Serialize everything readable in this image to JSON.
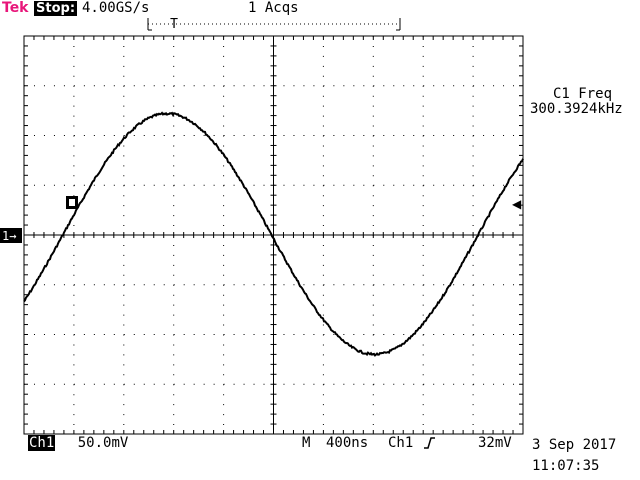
{
  "header": {
    "brand": "Tek",
    "status": "Stop:",
    "sample_rate": "4.00GS/s",
    "acquisitions": "1 Acqs",
    "trigger_position_marker": "T"
  },
  "measurement": {
    "label": "C1 Freq",
    "value": "300.3924kHz"
  },
  "footer": {
    "channel": "Ch1",
    "volts_per_div": "50.0mV",
    "timebase_prefix": "M",
    "time_per_div": "400ns",
    "trigger_source": "Ch1",
    "trigger_level": "32mV",
    "date": "3 Sep 2017",
    "time": "11:07:35"
  },
  "markers": {
    "channel_ground": "1→",
    "trigger_level_marker": "◀"
  },
  "waveform": {
    "channel": "Ch1",
    "frequency_hz": 300392.4,
    "amplitude_divisions": 2.42,
    "offset_divisions": 0.02,
    "zero_crossing_time_div": 4.95,
    "trace_color": "#000000"
  }
}
